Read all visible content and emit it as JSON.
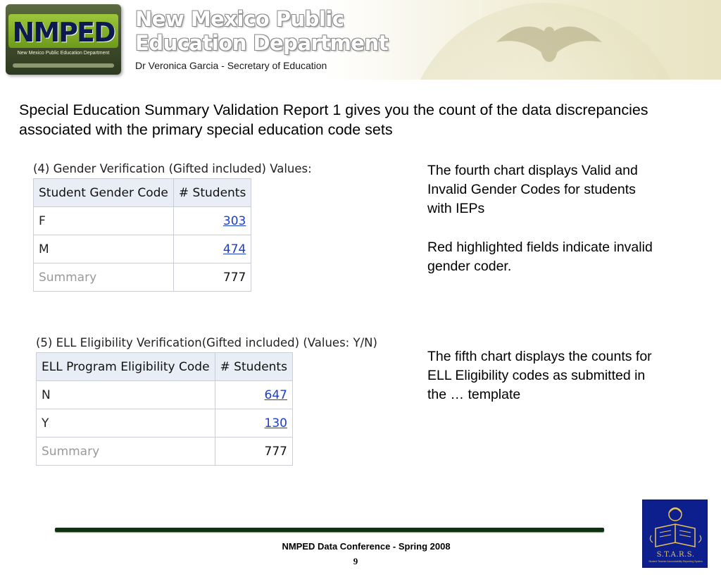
{
  "header": {
    "logo_text": "NMPED",
    "logo_subtext": "New Mexico Public Education Department",
    "title_line1": "New Mexico Public",
    "title_line2": "Education Department",
    "subtitle": "Dr Veronica Garcia - Secretary of Education"
  },
  "intro": "Special Education Summary Validation Report 1 gives you the count of the data discrepancies associated with the primary special education code sets",
  "tables": [
    {
      "caption": "(4) Gender Verification (Gifted  included)  Values:",
      "headers": [
        "Student Gender Code",
        "# Students"
      ],
      "rows": [
        {
          "code": "F",
          "count": "303"
        },
        {
          "code": "M",
          "count": "474"
        }
      ],
      "summary_label": "Summary",
      "summary_value": "777"
    },
    {
      "caption": "(5) ELL Eligibility Verification(Gifted included)  (Values: Y/N)",
      "headers": [
        "ELL Program Eligibility Code",
        "# Students"
      ],
      "rows": [
        {
          "code": "N",
          "count": "647"
        },
        {
          "code": "Y",
          "count": "130"
        }
      ],
      "summary_label": "Summary",
      "summary_value": "777"
    }
  ],
  "notes": {
    "fourth_chart": "The fourth chart displays Valid and Invalid Gender Codes for students with IEPs",
    "red_highlight": "Red highlighted fields indicate invalid gender coder.",
    "fifth_chart": "The fifth chart displays the counts for ELL Eligibility codes as submitted in the … template"
  },
  "footer": {
    "conference": "NMPED Data Conference  - Spring 2008",
    "page_number": "9",
    "stars_logo_text": "S.T.A.R.S.",
    "stars_logo_subtext": "Student Teacher Accountability Reporting System"
  },
  "colors": {
    "link": "#1c3ec8",
    "table_header_bg": "#e9edf5",
    "footer_line": "#0f3210",
    "stars_bg": "#0d1f8c",
    "logo_green": "#6e9a1c"
  }
}
